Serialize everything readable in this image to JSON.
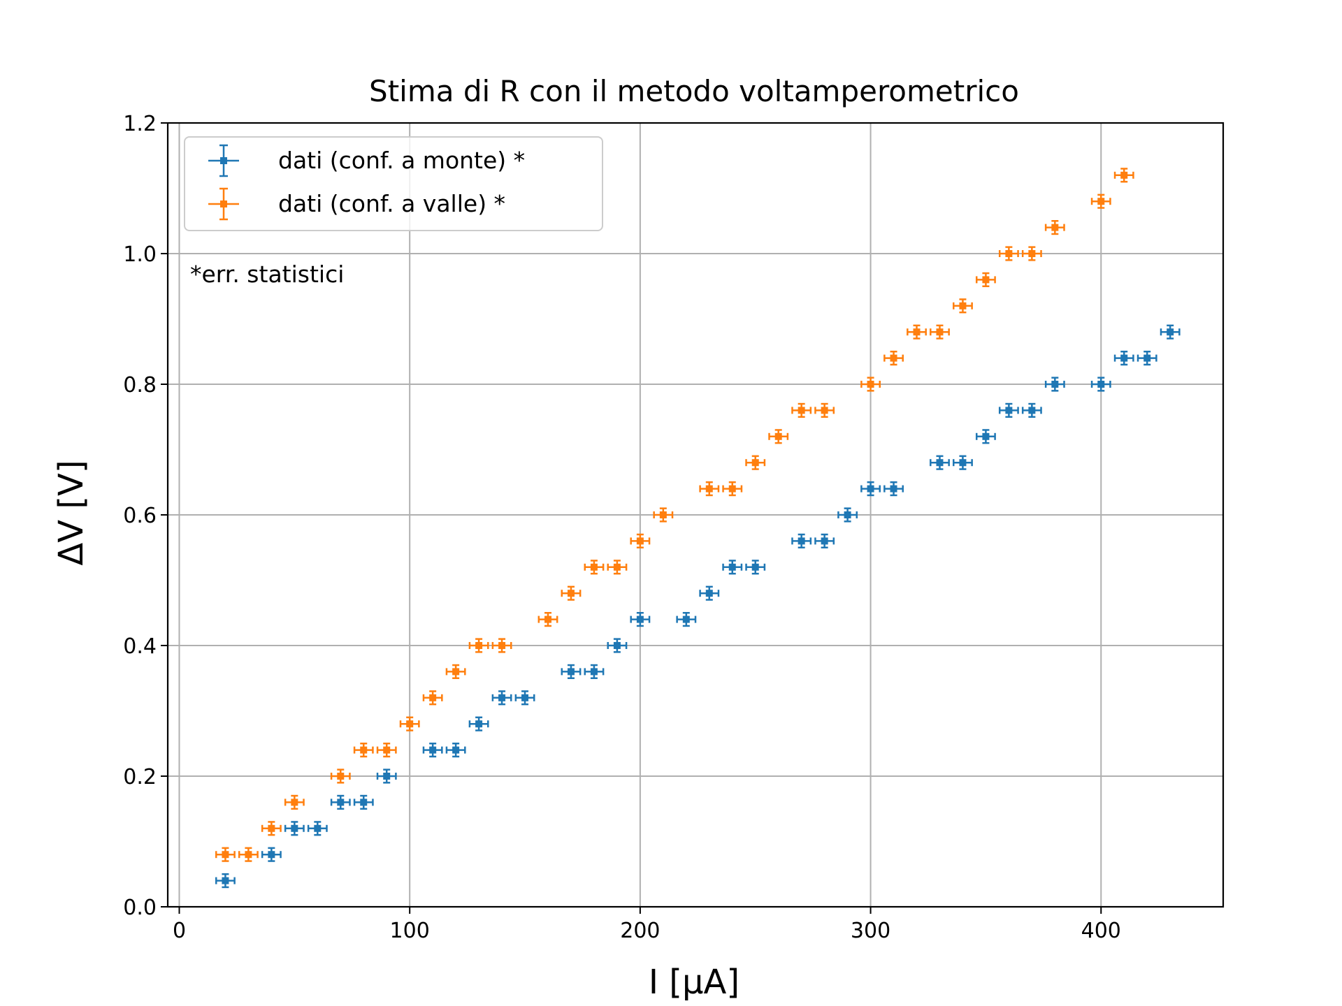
{
  "chart_data": {
    "type": "scatter",
    "title": "Stima di R con il metodo voltamperometrico",
    "xlabel": "I [μA]",
    "ylabel": "ΔV [V]",
    "xlim": [
      -5,
      453
    ],
    "ylim": [
      0,
      1.2
    ],
    "xticks": [
      0,
      100,
      200,
      300,
      400
    ],
    "xtick_labels": [
      "0",
      "100",
      "200",
      "300",
      "400"
    ],
    "yticks": [
      0.0,
      0.2,
      0.4,
      0.6,
      0.8,
      1.0,
      1.2
    ],
    "ytick_labels": [
      "0.0",
      "0.2",
      "0.4",
      "0.6",
      "0.8",
      "1.0",
      "1.2"
    ],
    "grid": true,
    "legend_position": "upper-left",
    "annotation": "*err. statistici",
    "x_error": 4,
    "y_error": 0.01,
    "series": [
      {
        "name": "dati (conf. a monte) *",
        "color": "#1f77b4",
        "x": [
          20,
          40,
          50,
          60,
          70,
          80,
          90,
          110,
          120,
          130,
          140,
          150,
          170,
          180,
          190,
          200,
          220,
          230,
          240,
          250,
          270,
          280,
          290,
          300,
          310,
          330,
          340,
          350,
          360,
          370,
          380,
          400,
          410,
          420,
          430
        ],
        "y": [
          0.04,
          0.08,
          0.12,
          0.12,
          0.16,
          0.16,
          0.2,
          0.24,
          0.24,
          0.28,
          0.32,
          0.32,
          0.36,
          0.36,
          0.4,
          0.44,
          0.44,
          0.48,
          0.52,
          0.52,
          0.56,
          0.56,
          0.6,
          0.64,
          0.64,
          0.68,
          0.68,
          0.72,
          0.76,
          0.76,
          0.8,
          0.8,
          0.84,
          0.84,
          0.88
        ]
      },
      {
        "name": "dati (conf. a valle) *",
        "color": "#ff7f0e",
        "x": [
          20,
          30,
          40,
          50,
          70,
          80,
          90,
          100,
          110,
          120,
          130,
          140,
          160,
          170,
          180,
          190,
          200,
          210,
          230,
          240,
          250,
          260,
          270,
          280,
          300,
          310,
          320,
          330,
          340,
          350,
          360,
          370,
          380,
          400,
          410
        ],
        "y": [
          0.08,
          0.08,
          0.12,
          0.16,
          0.2,
          0.24,
          0.24,
          0.28,
          0.32,
          0.36,
          0.4,
          0.4,
          0.44,
          0.48,
          0.52,
          0.52,
          0.56,
          0.6,
          0.64,
          0.64,
          0.68,
          0.72,
          0.76,
          0.76,
          0.8,
          0.84,
          0.88,
          0.88,
          0.92,
          0.96,
          1.0,
          1.0,
          1.04,
          1.08,
          1.12
        ]
      }
    ]
  }
}
